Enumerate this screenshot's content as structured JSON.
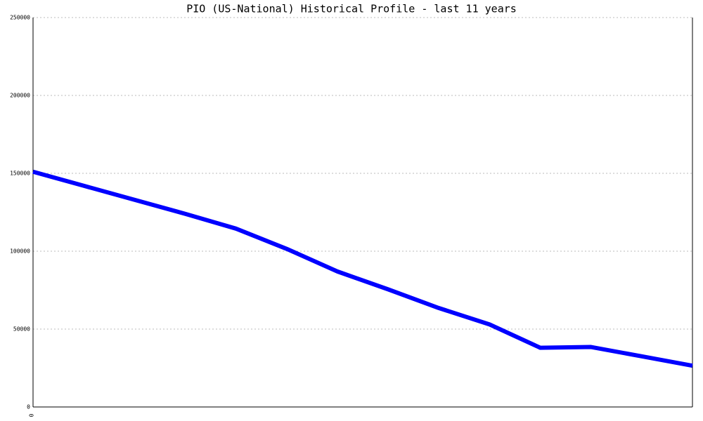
{
  "chart_data": {
    "type": "line",
    "title": "PIO (US-National) Historical Profile - last 11 years",
    "categories": [
      "0",
      null,
      null,
      null,
      null,
      null,
      null,
      null,
      null,
      null,
      null,
      null,
      null,
      null
    ],
    "values": [
      151000,
      142000,
      133000,
      124000,
      114500,
      101500,
      87000,
      75500,
      63500,
      53000,
      38000,
      38500,
      32500,
      26500
    ],
    "color": "#0000ff",
    "ylim": [
      0,
      250000
    ],
    "yticks": [
      0,
      50000,
      100000,
      150000,
      200000,
      250000
    ],
    "grid": true
  }
}
